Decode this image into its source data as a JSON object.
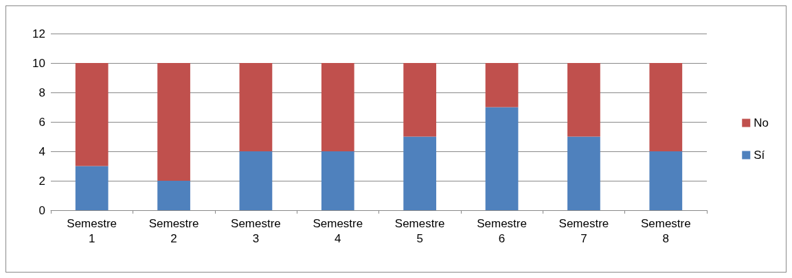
{
  "chart_data": {
    "type": "bar",
    "stacked": true,
    "categories": [
      "Semestre 1",
      "Semestre 2",
      "Semestre 3",
      "Semestre 4",
      "Semestre 5",
      "Semestre 6",
      "Semestre 7",
      "Semestre 8"
    ],
    "series": [
      {
        "name": "Sí",
        "color": "#4f81bd",
        "values": [
          3,
          2,
          4,
          4,
          5,
          7,
          5,
          4
        ]
      },
      {
        "name": "No",
        "color": "#c0504d",
        "values": [
          7,
          8,
          6,
          6,
          5,
          3,
          5,
          6
        ]
      }
    ],
    "ylim": [
      0,
      12
    ],
    "yticks": [
      0,
      2,
      4,
      6,
      8,
      10,
      12
    ],
    "grid": "y",
    "legend": "right"
  }
}
